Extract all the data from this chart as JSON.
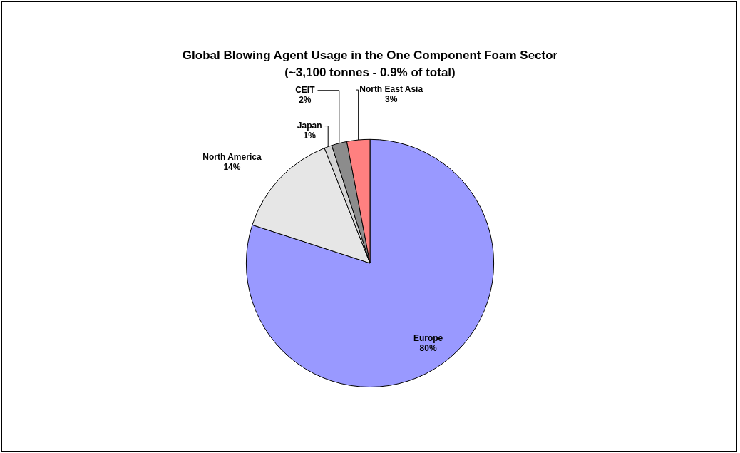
{
  "chart_data": {
    "type": "pie",
    "title": "Global Blowing Agent Usage in the One Component Foam Sector",
    "subtitle": "(~3,100 tonnes - 0.9% of total)",
    "categories": [
      "Europe",
      "North America",
      "Japan",
      "CEIT",
      "North East Asia"
    ],
    "values": [
      80,
      14,
      1,
      2,
      3
    ],
    "colors": [
      "#9999ff",
      "#e6e6e6",
      "#d4d4d4",
      "#8c8c8c",
      "#ff8080"
    ],
    "value_labels": [
      "80%",
      "14%",
      "1%",
      "2%",
      "3%"
    ],
    "legend": false
  }
}
